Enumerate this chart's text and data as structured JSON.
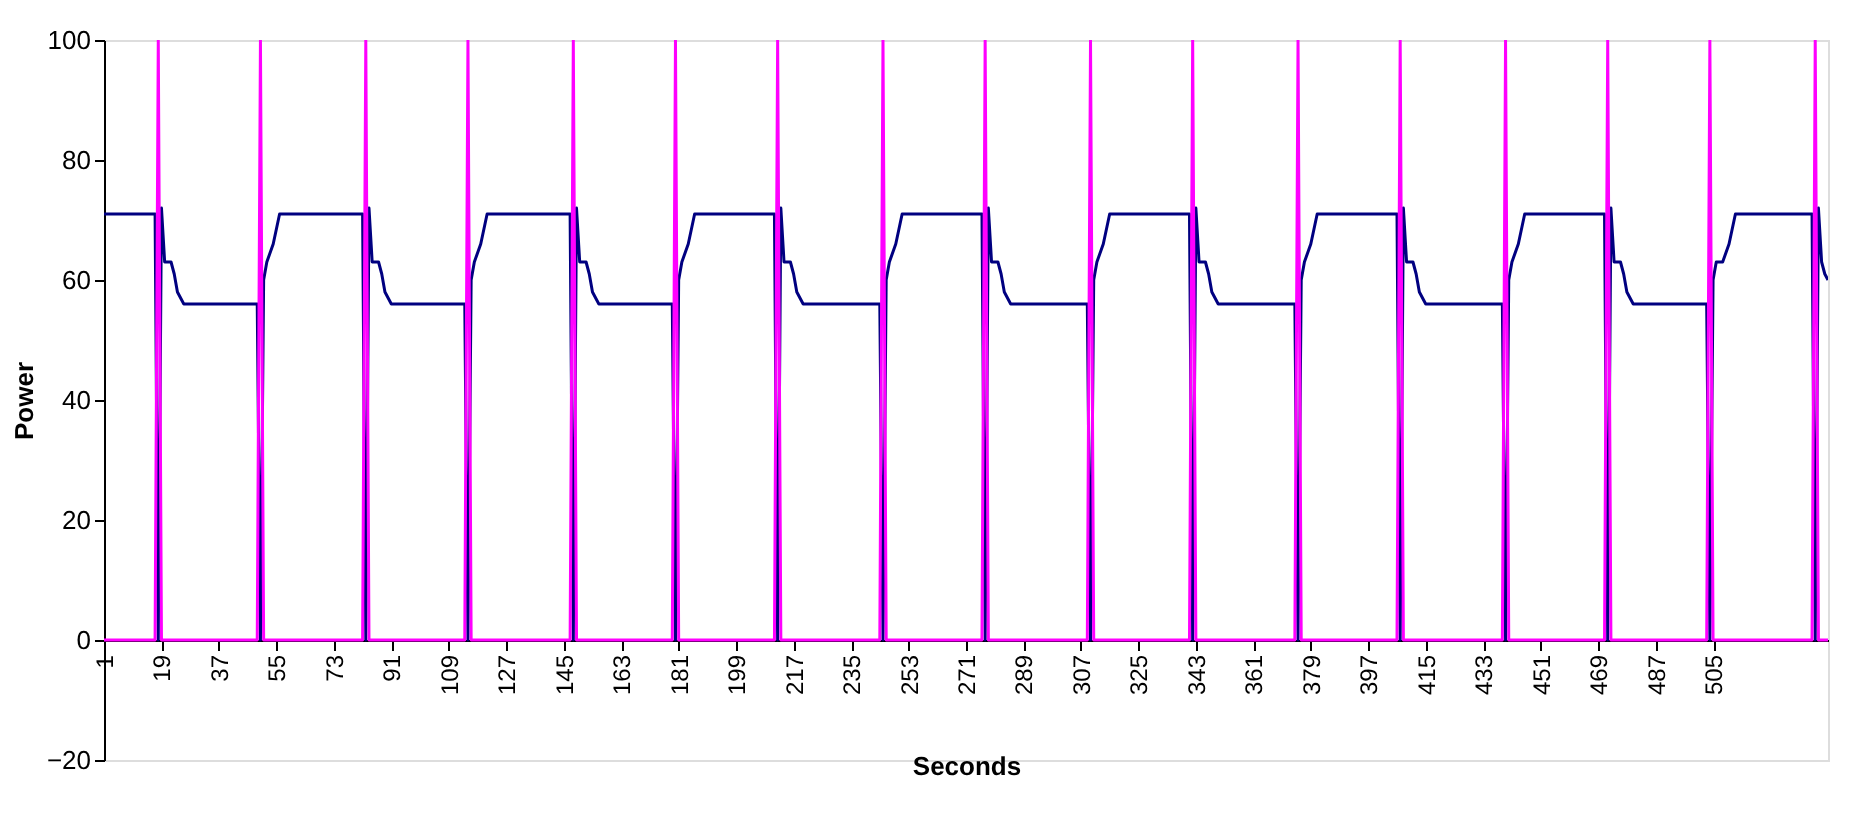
{
  "chart_data": {
    "type": "line",
    "xlabel": "Seconds",
    "ylabel": "Power",
    "xlim": [
      1,
      541
    ],
    "ylim": [
      -20,
      100
    ],
    "xticks": [
      1,
      19,
      37,
      55,
      73,
      91,
      109,
      127,
      145,
      163,
      181,
      199,
      217,
      235,
      253,
      271,
      289,
      307,
      325,
      343,
      361,
      379,
      397,
      415,
      433,
      451,
      469,
      487,
      505
    ],
    "yticks": [
      -20,
      0,
      20,
      40,
      60,
      80,
      100
    ],
    "grid": false,
    "series": [
      {
        "color": "#000080",
        "x": [
          1,
          17,
          18,
          19,
          20,
          22,
          23,
          24,
          26,
          49,
          50,
          51,
          52,
          54,
          56,
          82,
          83,
          84,
          85,
          87,
          88,
          89,
          91,
          114,
          115,
          116,
          117,
          119,
          121,
          147,
          148,
          149,
          150,
          152,
          153,
          154,
          156,
          179,
          180,
          181,
          182,
          184,
          186,
          211,
          212,
          213,
          214,
          216,
          217,
          218,
          220,
          244,
          245,
          246,
          247,
          249,
          251,
          276,
          277,
          278,
          279,
          281,
          282,
          283,
          285,
          309,
          310,
          311,
          312,
          314,
          316,
          341,
          342,
          343,
          344,
          346,
          347,
          348,
          350,
          374,
          375,
          376,
          377,
          379,
          381,
          406,
          407,
          408,
          409,
          411,
          412,
          413,
          415,
          439,
          440,
          441,
          442,
          444,
          446,
          471,
          472,
          473,
          474,
          476,
          477,
          478,
          480,
          503,
          504,
          505,
          506,
          508,
          510,
          512,
          536,
          537,
          538,
          539,
          540,
          541
        ],
        "values": [
          71,
          71,
          0,
          72,
          63,
          63,
          61,
          58,
          56,
          56,
          0,
          60,
          63,
          66,
          71,
          71,
          0,
          72,
          63,
          63,
          61,
          58,
          56,
          56,
          0,
          60,
          63,
          66,
          71,
          71,
          0,
          72,
          63,
          63,
          61,
          58,
          56,
          56,
          0,
          60,
          63,
          66,
          71,
          71,
          0,
          72,
          63,
          63,
          61,
          58,
          56,
          56,
          0,
          60,
          63,
          66,
          71,
          71,
          0,
          72,
          63,
          63,
          61,
          58,
          56,
          56,
          0,
          60,
          63,
          66,
          71,
          71,
          0,
          72,
          63,
          63,
          61,
          58,
          56,
          56,
          0,
          60,
          63,
          66,
          71,
          71,
          0,
          72,
          63,
          63,
          61,
          58,
          56,
          56,
          0,
          60,
          63,
          66,
          71,
          71,
          0,
          72,
          63,
          63,
          61,
          58,
          56,
          56,
          0,
          60,
          63,
          63,
          66,
          71,
          71,
          0,
          72,
          63,
          61,
          60
        ]
      },
      {
        "color": "#ff00ff",
        "x": [
          1,
          17,
          18,
          19,
          49,
          50,
          51,
          82,
          83,
          84,
          114,
          115,
          116,
          147,
          148,
          149,
          179,
          180,
          181,
          211,
          212,
          213,
          244,
          245,
          246,
          276,
          277,
          278,
          309,
          310,
          311,
          341,
          342,
          343,
          374,
          375,
          376,
          406,
          407,
          408,
          439,
          440,
          441,
          471,
          472,
          473,
          503,
          504,
          505,
          536,
          537,
          538,
          541
        ],
        "values": [
          0,
          0,
          100,
          0,
          0,
          100,
          0,
          0,
          100,
          0,
          0,
          100,
          0,
          0,
          100,
          0,
          0,
          100,
          0,
          0,
          100,
          0,
          0,
          100,
          0,
          0,
          100,
          0,
          0,
          100,
          0,
          0,
          100,
          0,
          0,
          100,
          0,
          0,
          100,
          0,
          0,
          100,
          0,
          0,
          100,
          0,
          0,
          100,
          0,
          0,
          100,
          0,
          0
        ]
      }
    ]
  }
}
